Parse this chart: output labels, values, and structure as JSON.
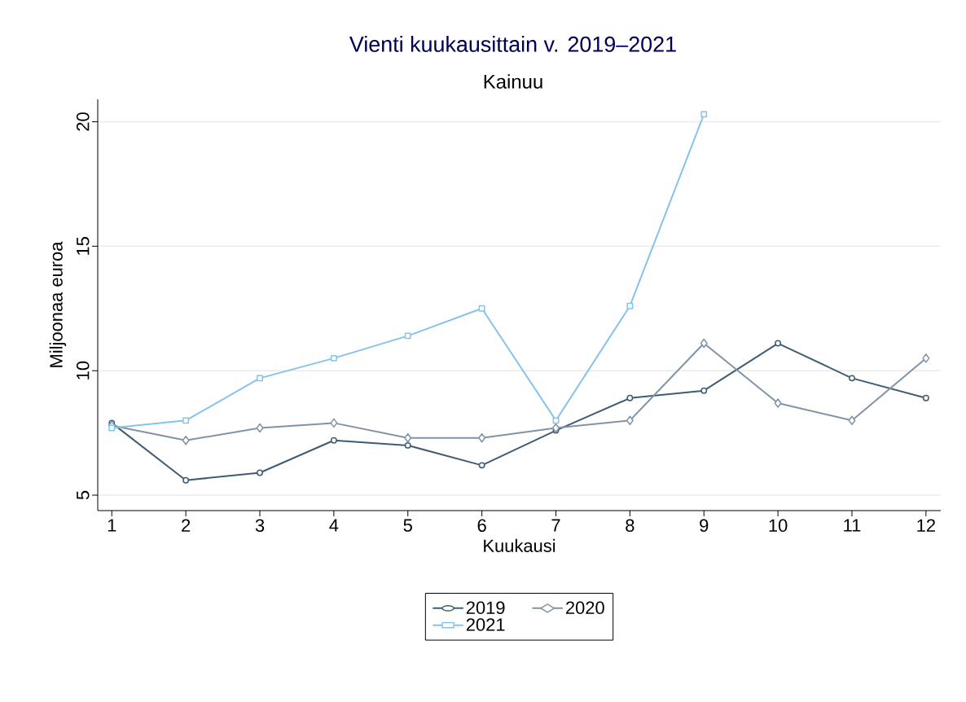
{
  "chart_data": {
    "type": "line",
    "title": "Vienti kuukausittain v. 2019–2021",
    "subtitle": "Kainuu",
    "xlabel": "Kuukausi",
    "ylabel": "Miljoonaa euroa",
    "x": [
      1,
      2,
      3,
      4,
      5,
      6,
      7,
      8,
      9,
      10,
      11,
      12
    ],
    "xlim": [
      0.81,
      12.2
    ],
    "xticks": [
      1,
      2,
      3,
      4,
      5,
      6,
      7,
      8,
      9,
      10,
      11,
      12
    ],
    "ylim": [
      4.38,
      20.9
    ],
    "yticks": [
      5,
      10,
      15,
      20
    ],
    "grid": "y",
    "legend": "bottom",
    "series": [
      {
        "name": "2019",
        "color": "#3e5d75",
        "marker": "circle",
        "values": [
          7.9,
          5.6,
          5.9,
          7.2,
          7.0,
          6.2,
          7.6,
          8.9,
          9.2,
          11.1,
          9.7,
          8.9
        ]
      },
      {
        "name": "2020",
        "color": "#8193a6",
        "marker": "diamond",
        "values": [
          7.8,
          7.2,
          7.7,
          7.9,
          7.3,
          7.3,
          7.7,
          8.0,
          11.1,
          8.7,
          8.0,
          10.5
        ]
      },
      {
        "name": "2021",
        "color": "#86c2ea",
        "marker": "square",
        "values": [
          7.7,
          8.0,
          9.7,
          10.5,
          11.4,
          12.5,
          8.0,
          12.6,
          20.3,
          null,
          null,
          null
        ]
      }
    ]
  }
}
